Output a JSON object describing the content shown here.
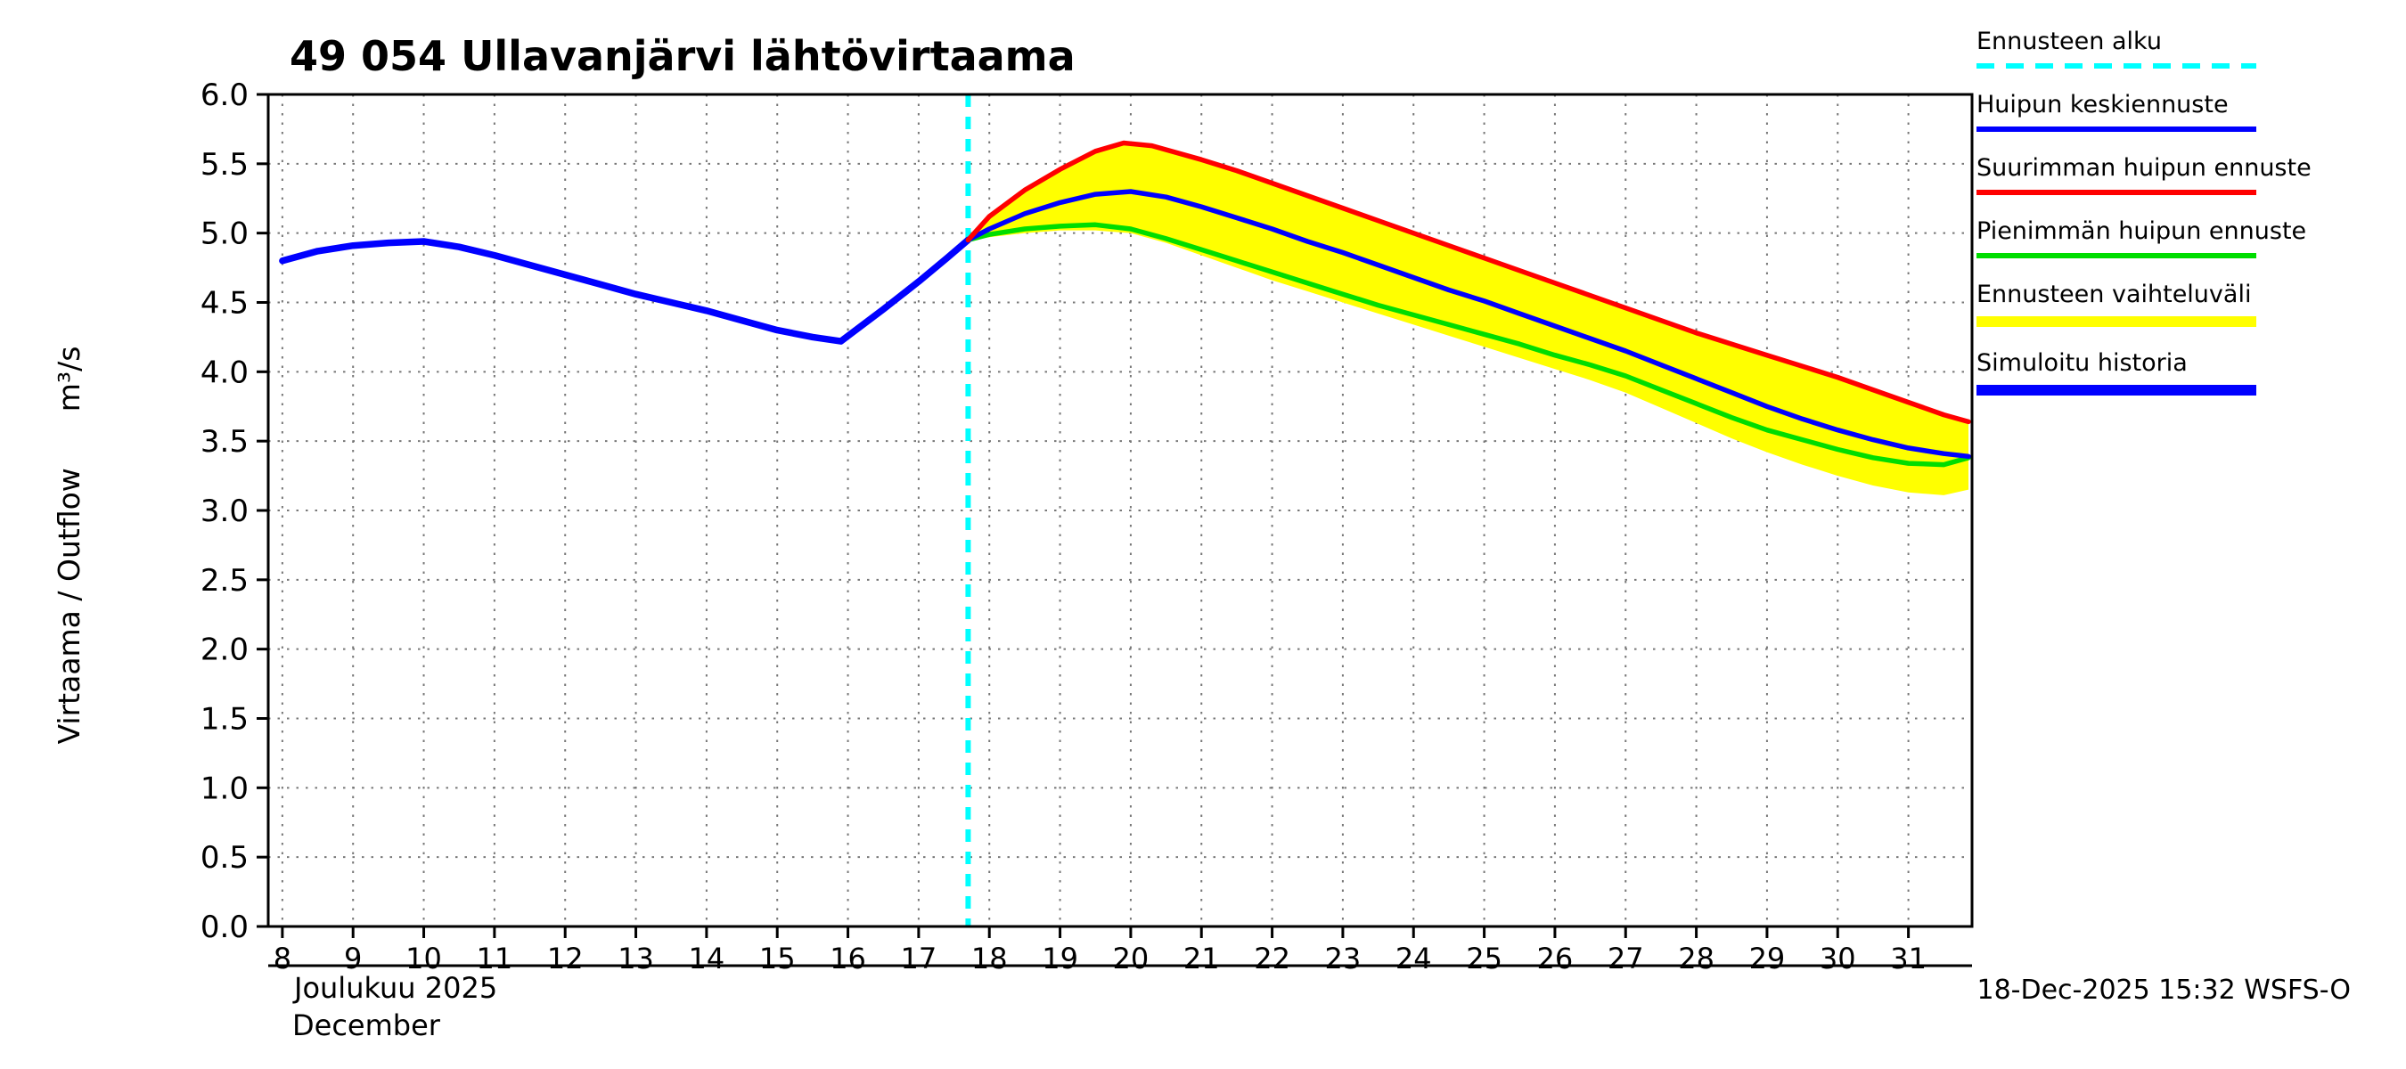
{
  "page": {
    "timestamp": "18-Dec-2025 15:32 WSFS-O"
  },
  "legend": {
    "items": [
      {
        "label": "Ennusteen alku",
        "color": "#00ffff",
        "style": "dashed"
      },
      {
        "label": "Huipun keskiennuste",
        "color": "#0000ff",
        "style": "solid"
      },
      {
        "label": "Suurimman huipun ennuste",
        "color": "#ff0000",
        "style": "solid"
      },
      {
        "label": "Pienimmän huipun ennuste",
        "color": "#00dd00",
        "style": "solid"
      },
      {
        "label": "Ennusteen vaihteluväli",
        "color": "#ffff00",
        "style": "solid-thick"
      },
      {
        "label": "Simuloitu historia",
        "color": "#0000ff",
        "style": "solid-thick"
      }
    ]
  },
  "chart_data": {
    "type": "line",
    "title": "49 054 Ullavanjärvi lähtövirtaama",
    "ylabel": "Virtaama / Outflow      m³/s",
    "xlabel_fi": "Joulukuu 2025",
    "xlabel_en": "December",
    "legend_position": "top-right",
    "grid": true,
    "xlim": [
      7.8,
      31.9
    ],
    "ylim": [
      0,
      6
    ],
    "xticks": [
      8,
      9,
      10,
      11,
      12,
      13,
      14,
      15,
      16,
      17,
      18,
      19,
      20,
      21,
      22,
      23,
      24,
      25,
      26,
      27,
      28,
      29,
      30,
      31
    ],
    "yticks": [
      0,
      0.5,
      1,
      1.5,
      2,
      2.5,
      3,
      3.5,
      4,
      4.5,
      5,
      5.5,
      6
    ],
    "forecast_start_x": 17.7,
    "forecast_start_color": "#00ffff",
    "band": {
      "name": "Ennusteen vaihteluväli",
      "color": "#ffff00",
      "upper": [
        [
          17.7,
          4.95
        ],
        [
          18,
          5.12
        ],
        [
          18.5,
          5.31
        ],
        [
          19,
          5.46
        ],
        [
          19.5,
          5.59
        ],
        [
          19.9,
          5.65
        ],
        [
          20.3,
          5.63
        ],
        [
          21,
          5.53
        ],
        [
          21.5,
          5.45
        ],
        [
          22,
          5.36
        ],
        [
          22.5,
          5.27
        ],
        [
          23,
          5.18
        ],
        [
          23.5,
          5.09
        ],
        [
          24,
          5.0
        ],
        [
          24.5,
          4.91
        ],
        [
          25,
          4.82
        ],
        [
          25.5,
          4.73
        ],
        [
          26,
          4.64
        ],
        [
          26.5,
          4.55
        ],
        [
          27,
          4.46
        ],
        [
          27.5,
          4.37
        ],
        [
          28,
          4.28
        ],
        [
          28.5,
          4.2
        ],
        [
          29,
          4.12
        ],
        [
          29.5,
          4.04
        ],
        [
          30,
          3.96
        ],
        [
          30.5,
          3.87
        ],
        [
          31,
          3.78
        ],
        [
          31.5,
          3.69
        ],
        [
          31.85,
          3.64
        ]
      ],
      "lower": [
        [
          17.7,
          4.95
        ],
        [
          18,
          4.97
        ],
        [
          18.5,
          5.0
        ],
        [
          19,
          5.02
        ],
        [
          19.5,
          5.02
        ],
        [
          20,
          5.0
        ],
        [
          20.5,
          4.93
        ],
        [
          21,
          4.84
        ],
        [
          21.5,
          4.75
        ],
        [
          22,
          4.66
        ],
        [
          22.5,
          4.58
        ],
        [
          23,
          4.5
        ],
        [
          23.5,
          4.42
        ],
        [
          24,
          4.34
        ],
        [
          24.5,
          4.26
        ],
        [
          25,
          4.18
        ],
        [
          25.5,
          4.1
        ],
        [
          26,
          4.02
        ],
        [
          26.5,
          3.94
        ],
        [
          27,
          3.85
        ],
        [
          27.5,
          3.74
        ],
        [
          28,
          3.63
        ],
        [
          28.5,
          3.52
        ],
        [
          29,
          3.42
        ],
        [
          29.5,
          3.33
        ],
        [
          30,
          3.25
        ],
        [
          30.5,
          3.18
        ],
        [
          31,
          3.13
        ],
        [
          31.5,
          3.11
        ],
        [
          31.85,
          3.15
        ]
      ]
    },
    "series": [
      {
        "id": "simulated-history",
        "name": "Simuloitu historia",
        "color": "#0000ff",
        "width": 7.5,
        "points": [
          [
            8,
            4.8
          ],
          [
            8.5,
            4.87
          ],
          [
            9,
            4.91
          ],
          [
            9.5,
            4.93
          ],
          [
            10,
            4.94
          ],
          [
            10.5,
            4.9
          ],
          [
            11,
            4.84
          ],
          [
            11.5,
            4.77
          ],
          [
            12,
            4.7
          ],
          [
            12.5,
            4.63
          ],
          [
            13,
            4.56
          ],
          [
            13.5,
            4.5
          ],
          [
            14,
            4.44
          ],
          [
            14.5,
            4.37
          ],
          [
            15,
            4.3
          ],
          [
            15.5,
            4.25
          ],
          [
            15.9,
            4.22
          ],
          [
            16.5,
            4.45
          ],
          [
            17,
            4.65
          ],
          [
            17.4,
            4.82
          ],
          [
            17.7,
            4.95
          ]
        ]
      },
      {
        "id": "minimum-peak-forecast",
        "name": "Pienimmän huipun ennuste",
        "color": "#00dd00",
        "width": 5.5,
        "points": [
          [
            17.7,
            4.95
          ],
          [
            18,
            4.99
          ],
          [
            18.5,
            5.03
          ],
          [
            19,
            5.05
          ],
          [
            19.5,
            5.06
          ],
          [
            20,
            5.03
          ],
          [
            20.5,
            4.96
          ],
          [
            21,
            4.88
          ],
          [
            21.5,
            4.8
          ],
          [
            22,
            4.72
          ],
          [
            22.5,
            4.64
          ],
          [
            23,
            4.56
          ],
          [
            23.5,
            4.48
          ],
          [
            24,
            4.41
          ],
          [
            24.5,
            4.34
          ],
          [
            25,
            4.27
          ],
          [
            25.5,
            4.2
          ],
          [
            26,
            4.12
          ],
          [
            26.5,
            4.05
          ],
          [
            27,
            3.97
          ],
          [
            27.5,
            3.87
          ],
          [
            28,
            3.77
          ],
          [
            28.5,
            3.67
          ],
          [
            29,
            3.58
          ],
          [
            29.5,
            3.51
          ],
          [
            30,
            3.44
          ],
          [
            30.5,
            3.38
          ],
          [
            31,
            3.34
          ],
          [
            31.5,
            3.33
          ],
          [
            31.85,
            3.38
          ]
        ]
      },
      {
        "id": "mean-peak-forecast",
        "name": "Huipun keskiennuste",
        "color": "#0000ff",
        "width": 5.5,
        "points": [
          [
            17.7,
            4.95
          ],
          [
            18,
            5.03
          ],
          [
            18.5,
            5.14
          ],
          [
            19,
            5.22
          ],
          [
            19.5,
            5.28
          ],
          [
            20,
            5.3
          ],
          [
            20.5,
            5.26
          ],
          [
            21,
            5.19
          ],
          [
            21.5,
            5.11
          ],
          [
            22,
            5.03
          ],
          [
            22.5,
            4.94
          ],
          [
            23,
            4.86
          ],
          [
            23.5,
            4.77
          ],
          [
            24,
            4.68
          ],
          [
            24.5,
            4.59
          ],
          [
            25,
            4.51
          ],
          [
            25.5,
            4.42
          ],
          [
            26,
            4.33
          ],
          [
            26.5,
            4.24
          ],
          [
            27,
            4.15
          ],
          [
            27.5,
            4.05
          ],
          [
            28,
            3.95
          ],
          [
            28.5,
            3.85
          ],
          [
            29,
            3.75
          ],
          [
            29.5,
            3.66
          ],
          [
            30,
            3.58
          ],
          [
            30.5,
            3.51
          ],
          [
            31,
            3.45
          ],
          [
            31.5,
            3.41
          ],
          [
            31.85,
            3.39
          ]
        ]
      },
      {
        "id": "maximum-peak-forecast",
        "name": "Suurimman huipun ennuste",
        "color": "#ff0000",
        "width": 5.5,
        "points": [
          [
            17.7,
            4.95
          ],
          [
            18,
            5.12
          ],
          [
            18.5,
            5.31
          ],
          [
            19,
            5.46
          ],
          [
            19.5,
            5.59
          ],
          [
            19.9,
            5.65
          ],
          [
            20.3,
            5.63
          ],
          [
            21,
            5.53
          ],
          [
            21.5,
            5.45
          ],
          [
            22,
            5.36
          ],
          [
            22.5,
            5.27
          ],
          [
            23,
            5.18
          ],
          [
            23.5,
            5.09
          ],
          [
            24,
            5.0
          ],
          [
            24.5,
            4.91
          ],
          [
            25,
            4.82
          ],
          [
            25.5,
            4.73
          ],
          [
            26,
            4.64
          ],
          [
            26.5,
            4.55
          ],
          [
            27,
            4.46
          ],
          [
            27.5,
            4.37
          ],
          [
            28,
            4.28
          ],
          [
            28.5,
            4.2
          ],
          [
            29,
            4.12
          ],
          [
            29.5,
            4.04
          ],
          [
            30,
            3.96
          ],
          [
            30.5,
            3.87
          ],
          [
            31,
            3.78
          ],
          [
            31.5,
            3.69
          ],
          [
            31.85,
            3.64
          ]
        ]
      }
    ]
  }
}
